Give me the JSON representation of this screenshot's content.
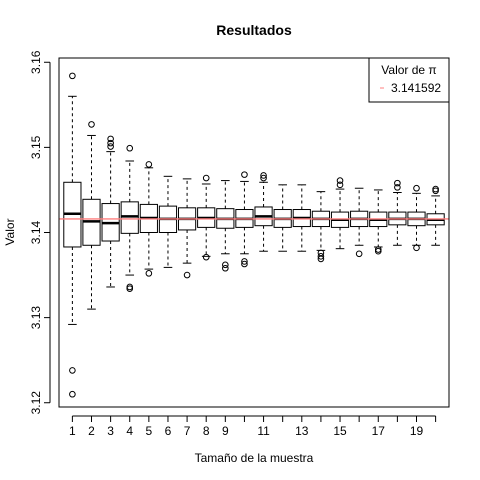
{
  "chart_data": {
    "type": "box",
    "title": "Resultados",
    "xlabel": "Tamaño de la muestra",
    "ylabel": "Valor",
    "ylim": [
      3.1195,
      3.1605
    ],
    "yticks": [
      3.12,
      3.13,
      3.14,
      3.15,
      3.16
    ],
    "ytick_labels": [
      "3.12",
      "3.13",
      "3.14",
      "3.15",
      "3.16"
    ],
    "xtick_positions": [
      1,
      2,
      3,
      4,
      5,
      6,
      7,
      8,
      9,
      11,
      13,
      15,
      17,
      19
    ],
    "xtick_labels": [
      "1",
      "2",
      "3",
      "4",
      "5",
      "6",
      "7",
      "8",
      "9",
      "11",
      "13",
      "15",
      "17",
      "19"
    ],
    "reference_line": {
      "value": 3.141592,
      "color": "#ff7f7f"
    },
    "legend": {
      "title": "Valor de π",
      "placement": "top-right",
      "entries": [
        {
          "label": "3.141592",
          "color": "#ff7f7f"
        }
      ]
    },
    "boxes": [
      {
        "x": 1,
        "min": 3.1292,
        "q1": 3.1383,
        "median": 3.1422,
        "q3": 3.1459,
        "max": 3.156,
        "outliers": [
          3.1584,
          3.1238,
          3.121
        ]
      },
      {
        "x": 2,
        "min": 3.131,
        "q1": 3.1385,
        "median": 3.1413,
        "q3": 3.1439,
        "max": 3.1514,
        "outliers": [
          3.1527
        ]
      },
      {
        "x": 3,
        "min": 3.1336,
        "q1": 3.139,
        "median": 3.1411,
        "q3": 3.1434,
        "max": 3.1495,
        "outliers": [
          3.151,
          3.1505,
          3.1501
        ]
      },
      {
        "x": 4,
        "min": 3.135,
        "q1": 3.1399,
        "median": 3.1419,
        "q3": 3.1436,
        "max": 3.1484,
        "outliers": [
          3.1499,
          3.1336,
          3.1334
        ]
      },
      {
        "x": 5,
        "min": 3.1357,
        "q1": 3.14,
        "median": 3.1417,
        "q3": 3.1433,
        "max": 3.1476,
        "outliers": [
          3.148,
          3.1352
        ]
      },
      {
        "x": 6,
        "min": 3.1359,
        "q1": 3.14,
        "median": 3.1416,
        "q3": 3.1431,
        "max": 3.1466,
        "outliers": []
      },
      {
        "x": 7,
        "min": 3.1364,
        "q1": 3.1403,
        "median": 3.1416,
        "q3": 3.1429,
        "max": 3.1463,
        "outliers": [
          3.135
        ]
      },
      {
        "x": 8,
        "min": 3.1372,
        "q1": 3.1406,
        "median": 3.1417,
        "q3": 3.1429,
        "max": 3.1457,
        "outliers": [
          3.1464,
          3.1371
        ]
      },
      {
        "x": 9,
        "min": 3.1375,
        "q1": 3.1405,
        "median": 3.1416,
        "q3": 3.1428,
        "max": 3.1461,
        "outliers": [
          3.1362,
          3.1358
        ]
      },
      {
        "x": 10,
        "min": 3.1375,
        "q1": 3.1406,
        "median": 3.1416,
        "q3": 3.1427,
        "max": 3.146,
        "outliers": [
          3.1468,
          3.1366,
          3.1363
        ]
      },
      {
        "x": 11,
        "min": 3.1378,
        "q1": 3.1408,
        "median": 3.1419,
        "q3": 3.143,
        "max": 3.1459,
        "outliers": [
          3.1467,
          3.1464
        ]
      },
      {
        "x": 12,
        "min": 3.1378,
        "q1": 3.1406,
        "median": 3.1416,
        "q3": 3.1427,
        "max": 3.1456,
        "outliers": []
      },
      {
        "x": 13,
        "min": 3.1378,
        "q1": 3.1407,
        "median": 3.1417,
        "q3": 3.1427,
        "max": 3.1456,
        "outliers": []
      },
      {
        "x": 14,
        "min": 3.1379,
        "q1": 3.1407,
        "median": 3.1416,
        "q3": 3.1425,
        "max": 3.1448,
        "outliers": [
          3.1376,
          3.1372,
          3.1369
        ]
      },
      {
        "x": 15,
        "min": 3.1381,
        "q1": 3.1406,
        "median": 3.1415,
        "q3": 3.1424,
        "max": 3.1451,
        "outliers": [
          3.1461,
          3.1456
        ]
      },
      {
        "x": 16,
        "min": 3.1385,
        "q1": 3.1407,
        "median": 3.1416,
        "q3": 3.1425,
        "max": 3.1452,
        "outliers": [
          3.1375
        ]
      },
      {
        "x": 17,
        "min": 3.1383,
        "q1": 3.1407,
        "median": 3.1415,
        "q3": 3.1424,
        "max": 3.145,
        "outliers": [
          3.138,
          3.1378
        ]
      },
      {
        "x": 18,
        "min": 3.1385,
        "q1": 3.1409,
        "median": 3.1416,
        "q3": 3.1424,
        "max": 3.1447,
        "outliers": [
          3.1458,
          3.1453
        ]
      },
      {
        "x": 19,
        "min": 3.1385,
        "q1": 3.1408,
        "median": 3.1416,
        "q3": 3.1424,
        "max": 3.1446,
        "outliers": [
          3.1452,
          3.1382
        ]
      },
      {
        "x": 20,
        "min": 3.1385,
        "q1": 3.1409,
        "median": 3.1415,
        "q3": 3.1422,
        "max": 3.1443,
        "outliers": [
          3.1451,
          3.1449
        ]
      }
    ],
    "grid": false
  }
}
